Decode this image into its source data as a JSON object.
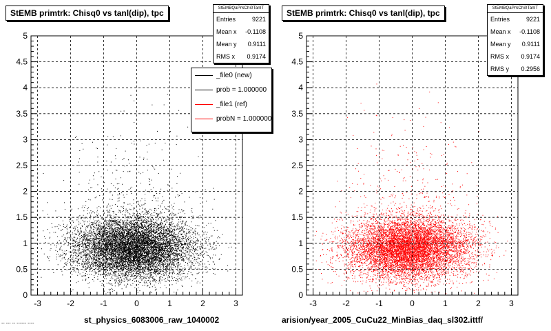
{
  "chart_data": [
    {
      "type": "scatter",
      "title": "StEMB primtrk: Chisq0 vs tanl(dip), tpc",
      "xlabel": "st_physics_6083006_raw_1040002",
      "ylabel": "",
      "xlim": [
        -3.2,
        3.2
      ],
      "ylim": [
        0,
        5
      ],
      "x_ticks": [
        "-3",
        "-2",
        "-1",
        "0",
        "1",
        "2",
        "3"
      ],
      "y_ticks": [
        "0",
        "0.5",
        "1",
        "1.5",
        "2",
        "2.5",
        "3",
        "3.5",
        "4",
        "4.5",
        "5"
      ],
      "grid": true,
      "marker_color": "#000000",
      "series": [
        {
          "name": "_file0 (new)",
          "distribution": {
            "entries": 9221,
            "mean_x": -0.1108,
            "mean_y": 0.9111,
            "rms_x": 0.9174,
            "rms_y": 0.2956
          }
        }
      ],
      "stats": {
        "header": "StEMBQaPrkChi0TanlT",
        "rows": [
          {
            "label": "Entries",
            "value": "9221"
          },
          {
            "label": "Mean x",
            "value": "-0.1108"
          },
          {
            "label": "Mean y",
            "value": "0.9111"
          },
          {
            "label": "RMS x",
            "value": "0.9174"
          }
        ]
      },
      "legend": {
        "placement": "top-right",
        "entries": [
          {
            "label": "_file0 (new)",
            "color": "#000000"
          },
          {
            "label": "prob = 1.000000",
            "color": "#000000"
          },
          {
            "label": "_file1 (ref)",
            "color": "#ff0000"
          },
          {
            "label": "probN = 1.000000",
            "color": "#ff0000"
          }
        ]
      }
    },
    {
      "type": "scatter",
      "title": "StEMB primtrk: Chisq0 vs tanl(dip), tpc",
      "xlabel": "arision/year_2005_CuCu22_MinBias_daq_sl302.ittf/",
      "ylabel": "",
      "xlim": [
        -3.2,
        3.2
      ],
      "ylim": [
        0,
        5
      ],
      "x_ticks": [
        "-3",
        "-2",
        "-1",
        "0",
        "1",
        "2",
        "3"
      ],
      "y_ticks": [
        "0",
        "0.5",
        "1",
        "1.5",
        "2",
        "2.5",
        "3",
        "3.5",
        "4",
        "4.5",
        "5"
      ],
      "grid": true,
      "marker_color": "#ff0000",
      "series": [
        {
          "name": "_file1 (ref)",
          "distribution": {
            "entries": 9221,
            "mean_x": -0.1108,
            "mean_y": 0.9111,
            "rms_x": 0.9174,
            "rms_y": 0.2956
          }
        }
      ],
      "stats": {
        "header": "StEMBQaPrkChi0TanlT",
        "rows": [
          {
            "label": "Entries",
            "value": "9221"
          },
          {
            "label": "Mean x",
            "value": "-0.1108"
          },
          {
            "label": "Mean y",
            "value": "0.9111"
          },
          {
            "label": "RMS x",
            "value": "0.9174"
          },
          {
            "label": "RMS y",
            "value": "0.2956"
          }
        ]
      }
    }
  ],
  "footer_note": "-- --- -- ------ ----"
}
